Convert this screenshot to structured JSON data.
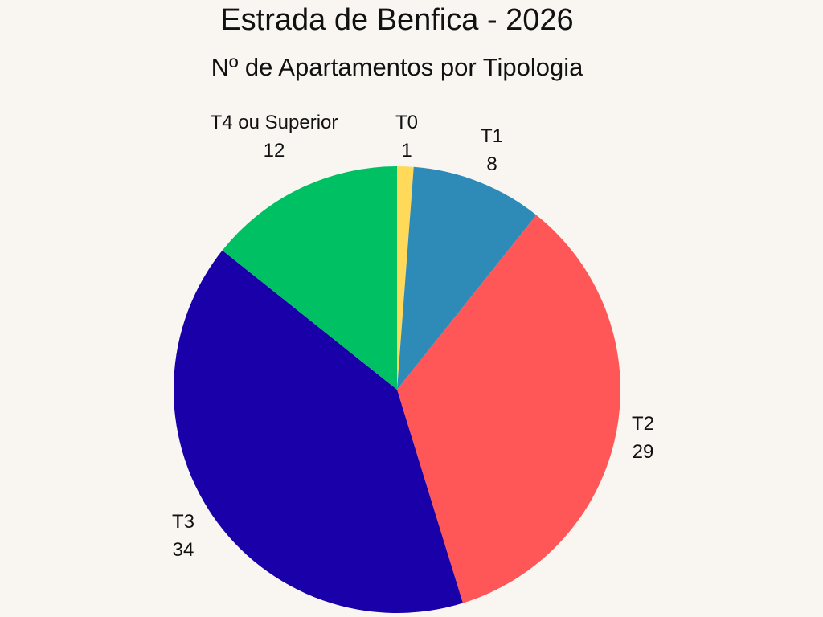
{
  "title": "Estrada de Benfica - 2026",
  "subtitle": "Nº de Apartamentos por Tipologia",
  "chart_data": {
    "type": "pie",
    "title": "Estrada de Benfica - 2026",
    "subtitle": "Nº de Apartamentos por Tipologia",
    "categories": [
      "T0",
      "T1",
      "T2",
      "T3",
      "T4 ou Superior"
    ],
    "values": [
      1,
      8,
      29,
      34,
      12
    ],
    "colors": [
      "#ffd95a",
      "#2e8bb8",
      "#ff5757",
      "#1a00a8",
      "#00c064"
    ],
    "start_angle": "12 o'clock",
    "direction": "clockwise",
    "legend": "none",
    "labels": [
      {
        "name": "T0",
        "value": "1"
      },
      {
        "name": "T1",
        "value": "8"
      },
      {
        "name": "T2",
        "value": "29"
      },
      {
        "name": "T3",
        "value": "34"
      },
      {
        "name": "T4 ou Superior",
        "value": "12"
      }
    ]
  }
}
